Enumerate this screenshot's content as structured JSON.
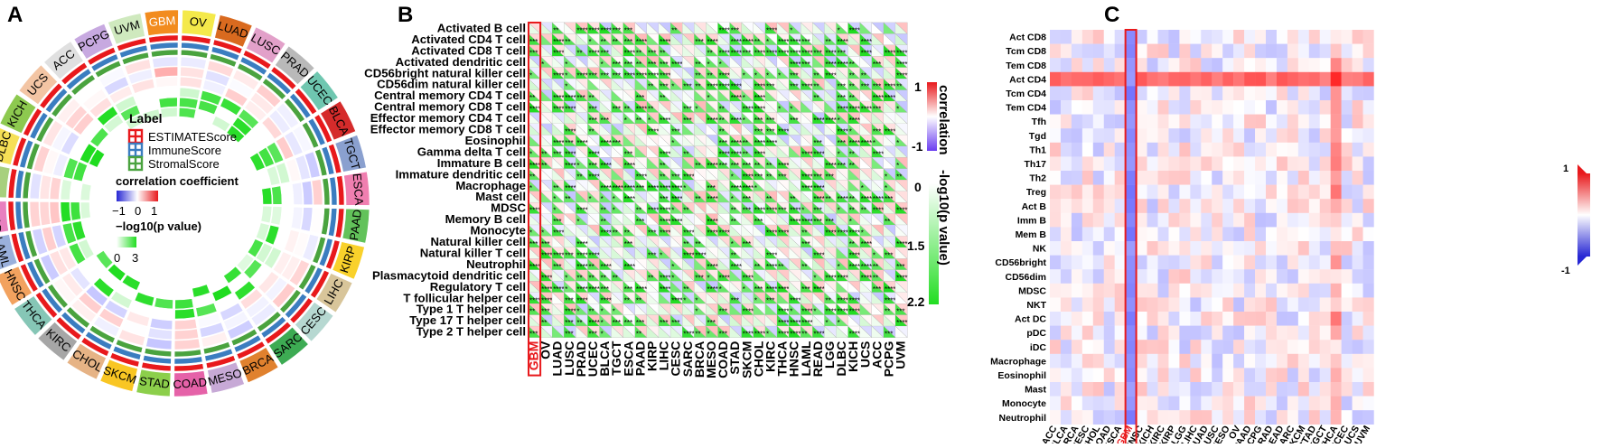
{
  "panels": {
    "a": "A",
    "b": "B",
    "c": "C"
  },
  "colors": {
    "red": "#e8191c",
    "blue": "#2727d4",
    "green": "#3ae83a",
    "highlight": "#e8191c",
    "estimate": "#e8191c",
    "immune": "#3b7dc0",
    "stromal": "#4aa33f"
  },
  "chart_data": [
    {
      "type": "circular-heatmap",
      "categories": [
        "GBM",
        "OV",
        "LUAD",
        "LUSC",
        "PRAD",
        "UCEC",
        "BLCA",
        "TGCT",
        "ESCA",
        "PAAD",
        "KIRP",
        "LIHC",
        "CESC",
        "SARC",
        "BRCA",
        "MESO",
        "COAD",
        "STAD",
        "SKCM",
        "CHOL",
        "KIRC",
        "THCA",
        "HNSC",
        "LAML",
        "READ",
        "LGG",
        "DLBC",
        "KICH",
        "UCS",
        "ACC",
        "PCPG",
        "UVM"
      ],
      "highlight": "GBM",
      "legend": {
        "title": "Label",
        "entries": [
          "ESTIMATEScore",
          "ImmuneScore",
          "StromalScore"
        ],
        "corr_title": "correlation coefficient",
        "corr_ticks": [
          "−1",
          "0",
          "1"
        ],
        "p_title": "−log10(p value)",
        "p_ticks": [
          "0",
          "3"
        ]
      }
    },
    {
      "type": "heatmap",
      "rows": [
        "Activated B cell",
        "Activated CD4 T cell",
        "Activated CD8 T cell",
        "Activated dendritic cell",
        "CD56bright natural killer cell",
        "CD56dim natural killer cell",
        "Central memory CD4 T cell",
        "Central memory CD8 T cell",
        "Effector memory CD4 T cell",
        "Effector memory CD8 T cell",
        "Eosinophil",
        "Gamma delta T cell",
        "Immature B cell",
        "Immature dendritic cell",
        "Macrophage",
        "Mast cell",
        "MDSC",
        "Memory B cell",
        "Monocyte",
        "Natural killer cell",
        "Natural killer T cell",
        "Neutrophil",
        "Plasmacytoid dendritic cell",
        "Regulatory T cell",
        "T follicular helper cell",
        "Type 1 T helper cell",
        "Type 17 T helper cell",
        "Type 2 T helper cell"
      ],
      "columns": [
        "GBM",
        "OV",
        "LUAD",
        "LUSC",
        "PRAD",
        "UCEC",
        "BLCA",
        "TGCT",
        "ESCA",
        "PAAD",
        "KIRP",
        "LIHC",
        "CESC",
        "SARC",
        "BRCA",
        "MESO",
        "COAD",
        "STAD",
        "SKCM",
        "CHOL",
        "KIRC",
        "THCA",
        "HNSC",
        "LAML",
        "READ",
        "LGG",
        "DLBC",
        "KICH",
        "UCS",
        "ACC",
        "PCPG",
        "UVM"
      ],
      "highlight": "GBM",
      "corr_legend": {
        "title": "correlation",
        "ticks": [
          "1",
          "-1"
        ]
      },
      "p_legend": {
        "title": "-log10(p value)",
        "ticks": [
          "0",
          "1.5",
          "2.2"
        ]
      }
    },
    {
      "type": "heatmap",
      "rows": [
        "Act CD8",
        "Tcm CD8",
        "Tem CD8",
        "Act CD4",
        "Tcm CD4",
        "Tem CD4",
        "Tfh",
        "Tgd",
        "Th1",
        "Th17",
        "Th2",
        "Treg",
        "Act B",
        "Imm B",
        "Mem B",
        "NK",
        "CD56bright",
        "CD56dim",
        "MDSC",
        "NKT",
        "Act DC",
        "pDC",
        "iDC",
        "Macrophage",
        "Eosinophil",
        "Mast",
        "Monocyte",
        "Neutrophil"
      ],
      "columns": [
        "ACC",
        "BLCA",
        "BRCA",
        "CESC",
        "CHOL",
        "COAD",
        "ESCA",
        "GBM",
        "HNSC",
        "KICH",
        "KIRC",
        "KIRP",
        "LGG",
        "LIHC",
        "LUAD",
        "LUSC",
        "MESO",
        "OV",
        "PAAD",
        "PCPG",
        "PRAD",
        "READ",
        "SARC",
        "SKCM",
        "STAD",
        "TGCT",
        "THCA",
        "UCEC",
        "UCS",
        "UVM"
      ],
      "highlight": "GBM",
      "legend": {
        "ticks": [
          "1",
          "-1"
        ]
      }
    }
  ]
}
